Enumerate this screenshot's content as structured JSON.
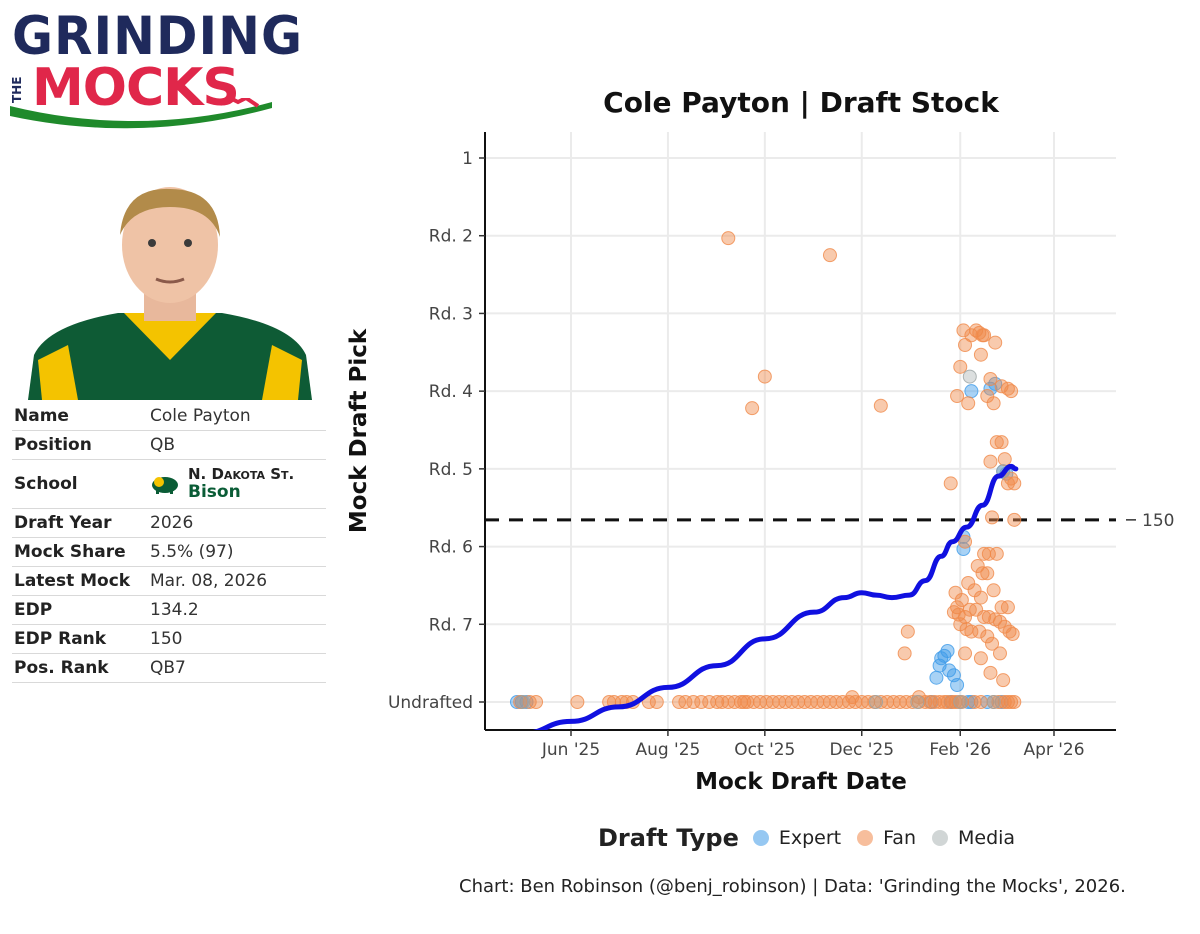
{
  "brand": {
    "line1": "GRINDING",
    "article": "THE",
    "line2": "MOCKS"
  },
  "player": {
    "rows": [
      {
        "label": "Name",
        "value": "Cole Payton"
      },
      {
        "label": "Position",
        "value": "QB"
      },
      {
        "label": "School",
        "value": ""
      },
      {
        "label": "Draft Year",
        "value": "2026"
      },
      {
        "label": "Mock Share",
        "value": "5.5% (97)"
      },
      {
        "label": "Latest Mock",
        "value": "Mar. 08, 2026"
      },
      {
        "label": "EDP",
        "value": "134.2"
      },
      {
        "label": "EDP Rank",
        "value": "150"
      },
      {
        "label": "Pos. Rank",
        "value": "QB7"
      }
    ],
    "school_name": "N. Dakota St.",
    "school_mascot": "Bison"
  },
  "chart_data": {
    "type": "scatter",
    "title": "Cole Payton | Draft Stock",
    "xlabel": "Mock Draft Date",
    "ylabel": "Mock Draft Pick",
    "x_ticks": [
      {
        "label": "Jun '25",
        "date": "2025-06-01"
      },
      {
        "label": "Aug '25",
        "date": "2025-08-01"
      },
      {
        "label": "Oct '25",
        "date": "2025-10-01"
      },
      {
        "label": "Dec '25",
        "date": "2025-12-01"
      },
      {
        "label": "Feb '26",
        "date": "2026-02-01"
      },
      {
        "label": "Apr '26",
        "date": "2026-04-01"
      }
    ],
    "y_ticks": [
      {
        "label": "1",
        "pick": 1
      },
      {
        "label": "Rd. 2",
        "pick": 33
      },
      {
        "label": "Rd. 3",
        "pick": 65
      },
      {
        "label": "Rd. 4",
        "pick": 97
      },
      {
        "label": "Rd. 5",
        "pick": 129
      },
      {
        "label": "Rd. 6",
        "pick": 161
      },
      {
        "label": "Rd. 7",
        "pick": 193
      },
      {
        "label": "Undrafted",
        "pick": 225
      }
    ],
    "reference_line": {
      "pick": 150,
      "label": "150"
    },
    "legend_title": "Draft Type",
    "series": [
      {
        "name": "Expert",
        "color": "#3f9be8",
        "points": [
          [
            "2025-04-28",
            225
          ],
          [
            "2025-05-01",
            225
          ],
          [
            "2025-05-04",
            225
          ],
          [
            "2026-01-17",
            215
          ],
          [
            "2026-01-19",
            210
          ],
          [
            "2026-01-20",
            207
          ],
          [
            "2026-01-22",
            206
          ],
          [
            "2026-01-24",
            204
          ],
          [
            "2026-01-25",
            212
          ],
          [
            "2026-01-28",
            214
          ],
          [
            "2026-01-30",
            218
          ],
          [
            "2026-01-26",
            225
          ],
          [
            "2026-02-06",
            225
          ],
          [
            "2026-02-08",
            225
          ],
          [
            "2026-02-18",
            225
          ],
          [
            "2026-02-03",
            157
          ],
          [
            "2026-02-03",
            162
          ],
          [
            "2026-02-08",
            97
          ],
          [
            "2026-02-20",
            96
          ],
          [
            "2026-02-23",
            94
          ],
          [
            "2026-02-28",
            130
          ],
          [
            "2026-03-02",
            131
          ],
          [
            "2026-01-14",
            225
          ],
          [
            "2026-02-27",
            225
          ]
        ]
      },
      {
        "name": "Fan",
        "color": "#f0894a",
        "points": [
          [
            "2025-04-30",
            225
          ],
          [
            "2025-05-06",
            225
          ],
          [
            "2025-05-10",
            225
          ],
          [
            "2025-06-05",
            225
          ],
          [
            "2025-06-25",
            225
          ],
          [
            "2025-06-28",
            225
          ],
          [
            "2025-07-03",
            225
          ],
          [
            "2025-07-06",
            225
          ],
          [
            "2025-07-10",
            225
          ],
          [
            "2025-07-20",
            225
          ],
          [
            "2025-07-25",
            225
          ],
          [
            "2025-08-08",
            225
          ],
          [
            "2025-08-12",
            225
          ],
          [
            "2025-08-17",
            225
          ],
          [
            "2025-08-22",
            225
          ],
          [
            "2025-08-27",
            225
          ],
          [
            "2025-09-01",
            225
          ],
          [
            "2025-09-04",
            225
          ],
          [
            "2025-09-08",
            225
          ],
          [
            "2025-09-12",
            225
          ],
          [
            "2025-09-16",
            225
          ],
          [
            "2025-09-20",
            225
          ],
          [
            "2025-09-24",
            225
          ],
          [
            "2025-09-28",
            225
          ],
          [
            "2025-10-02",
            225
          ],
          [
            "2025-10-06",
            225
          ],
          [
            "2025-10-10",
            225
          ],
          [
            "2025-10-14",
            225
          ],
          [
            "2025-10-18",
            225
          ],
          [
            "2025-10-22",
            225
          ],
          [
            "2025-10-26",
            225
          ],
          [
            "2025-10-30",
            225
          ],
          [
            "2025-11-03",
            225
          ],
          [
            "2025-11-07",
            225
          ],
          [
            "2025-11-11",
            225
          ],
          [
            "2025-11-15",
            225
          ],
          [
            "2025-11-19",
            225
          ],
          [
            "2025-11-23",
            225
          ],
          [
            "2025-11-27",
            225
          ],
          [
            "2025-12-01",
            225
          ],
          [
            "2025-12-05",
            225
          ],
          [
            "2025-12-09",
            225
          ],
          [
            "2025-12-13",
            225
          ],
          [
            "2025-12-17",
            225
          ],
          [
            "2025-12-21",
            225
          ],
          [
            "2025-12-25",
            225
          ],
          [
            "2025-12-29",
            225
          ],
          [
            "2026-01-02",
            225
          ],
          [
            "2026-01-06",
            225
          ],
          [
            "2026-01-10",
            225
          ],
          [
            "2026-01-13",
            225
          ],
          [
            "2026-01-16",
            225
          ],
          [
            "2026-01-19",
            225
          ],
          [
            "2026-01-22",
            225
          ],
          [
            "2026-01-24",
            225
          ],
          [
            "2026-01-27",
            225
          ],
          [
            "2026-01-29",
            225
          ],
          [
            "2026-01-31",
            225
          ],
          [
            "2026-02-02",
            225
          ],
          [
            "2026-02-10",
            225
          ],
          [
            "2026-02-14",
            225
          ],
          [
            "2026-02-22",
            225
          ],
          [
            "2026-02-25",
            225
          ],
          [
            "2026-03-01",
            225
          ],
          [
            "2026-03-03",
            225
          ],
          [
            "2026-03-05",
            225
          ],
          [
            "2026-03-07",
            225
          ],
          [
            "2025-11-25",
            223
          ],
          [
            "2025-09-08",
            34
          ],
          [
            "2025-11-11",
            41
          ],
          [
            "2025-10-01",
            91
          ],
          [
            "2025-09-23",
            104
          ],
          [
            "2025-12-13",
            103
          ],
          [
            "2025-09-18",
            225
          ],
          [
            "2026-01-26",
            135
          ],
          [
            "2026-01-30",
            99
          ],
          [
            "2026-02-01",
            87
          ],
          [
            "2026-02-03",
            72
          ],
          [
            "2026-02-04",
            78
          ],
          [
            "2026-02-06",
            102
          ],
          [
            "2026-02-08",
            74
          ],
          [
            "2026-02-11",
            72
          ],
          [
            "2026-02-13",
            73
          ],
          [
            "2026-02-15",
            74
          ],
          [
            "2026-02-16",
            74
          ],
          [
            "2026-02-14",
            82
          ],
          [
            "2026-02-18",
            99
          ],
          [
            "2026-02-20",
            92
          ],
          [
            "2026-02-22",
            102
          ],
          [
            "2026-02-23",
            77
          ],
          [
            "2026-02-27",
            95
          ],
          [
            "2026-03-03",
            96
          ],
          [
            "2026-03-05",
            97
          ],
          [
            "2026-02-24",
            118
          ],
          [
            "2026-02-27",
            118
          ],
          [
            "2026-03-01",
            125
          ],
          [
            "2026-02-20",
            126
          ],
          [
            "2026-03-05",
            133
          ],
          [
            "2026-03-03",
            135
          ],
          [
            "2026-03-07",
            135
          ],
          [
            "2026-02-21",
            149
          ],
          [
            "2026-03-07",
            150
          ],
          [
            "2026-02-04",
            159
          ],
          [
            "2026-02-16",
            164
          ],
          [
            "2026-02-19",
            164
          ],
          [
            "2026-02-24",
            164
          ],
          [
            "2026-02-12",
            169
          ],
          [
            "2026-02-15",
            172
          ],
          [
            "2026-02-18",
            172
          ],
          [
            "2026-02-06",
            176
          ],
          [
            "2026-01-29",
            180
          ],
          [
            "2026-02-02",
            183
          ],
          [
            "2026-01-30",
            186
          ],
          [
            "2026-02-10",
            179
          ],
          [
            "2026-02-14",
            182
          ],
          [
            "2026-02-22",
            179
          ],
          [
            "2026-02-27",
            186
          ],
          [
            "2026-03-03",
            186
          ],
          [
            "2026-01-28",
            188
          ],
          [
            "2026-01-31",
            189
          ],
          [
            "2026-02-04",
            190
          ],
          [
            "2026-02-07",
            187
          ],
          [
            "2026-02-11",
            187
          ],
          [
            "2026-02-16",
            190
          ],
          [
            "2026-02-19",
            190
          ],
          [
            "2026-02-23",
            191
          ],
          [
            "2026-02-26",
            192
          ],
          [
            "2026-03-01",
            194
          ],
          [
            "2026-03-04",
            196
          ],
          [
            "2026-03-06",
            197
          ],
          [
            "2026-02-01",
            193
          ],
          [
            "2026-02-05",
            195
          ],
          [
            "2026-02-08",
            196
          ],
          [
            "2026-02-13",
            196
          ],
          [
            "2026-02-18",
            198
          ],
          [
            "2026-02-21",
            201
          ],
          [
            "2026-02-26",
            205
          ],
          [
            "2026-02-14",
            207
          ],
          [
            "2026-02-20",
            213
          ],
          [
            "2026-02-28",
            216
          ],
          [
            "2025-12-30",
            196
          ],
          [
            "2025-12-28",
            205
          ],
          [
            "2026-01-06",
            223
          ],
          [
            "2026-02-04",
            205
          ]
        ]
      },
      {
        "name": "Media",
        "color": "#9aa3a3",
        "points": [
          [
            "2025-05-02",
            225
          ],
          [
            "2025-12-10",
            225
          ],
          [
            "2026-01-05",
            225
          ],
          [
            "2026-02-01",
            225
          ],
          [
            "2026-02-07",
            91
          ],
          [
            "2026-02-22",
            225
          ],
          [
            "2026-02-28",
            130
          ]
        ]
      }
    ],
    "trend": {
      "name": "Smoothed trend",
      "color": "#1010e0",
      "points": [
        [
          "2025-05-01",
          238
        ],
        [
          "2025-06-01",
          233
        ],
        [
          "2025-07-01",
          227
        ],
        [
          "2025-08-01",
          219
        ],
        [
          "2025-09-01",
          210
        ],
        [
          "2025-10-01",
          199
        ],
        [
          "2025-11-01",
          188
        ],
        [
          "2025-11-20",
          182
        ],
        [
          "2025-12-01",
          180
        ],
        [
          "2025-12-10",
          181
        ],
        [
          "2025-12-20",
          182
        ],
        [
          "2025-12-31",
          181
        ],
        [
          "2026-01-10",
          175
        ],
        [
          "2026-01-20",
          165
        ],
        [
          "2026-01-27",
          159
        ],
        [
          "2026-02-05",
          153
        ],
        [
          "2026-02-15",
          144
        ],
        [
          "2026-02-25",
          132
        ],
        [
          "2026-03-05",
          128
        ],
        [
          "2026-03-08",
          129
        ]
      ]
    }
  },
  "caption": "Chart: Ben Robinson (@benj_robinson) | Data: 'Grinding the Mocks', 2026."
}
